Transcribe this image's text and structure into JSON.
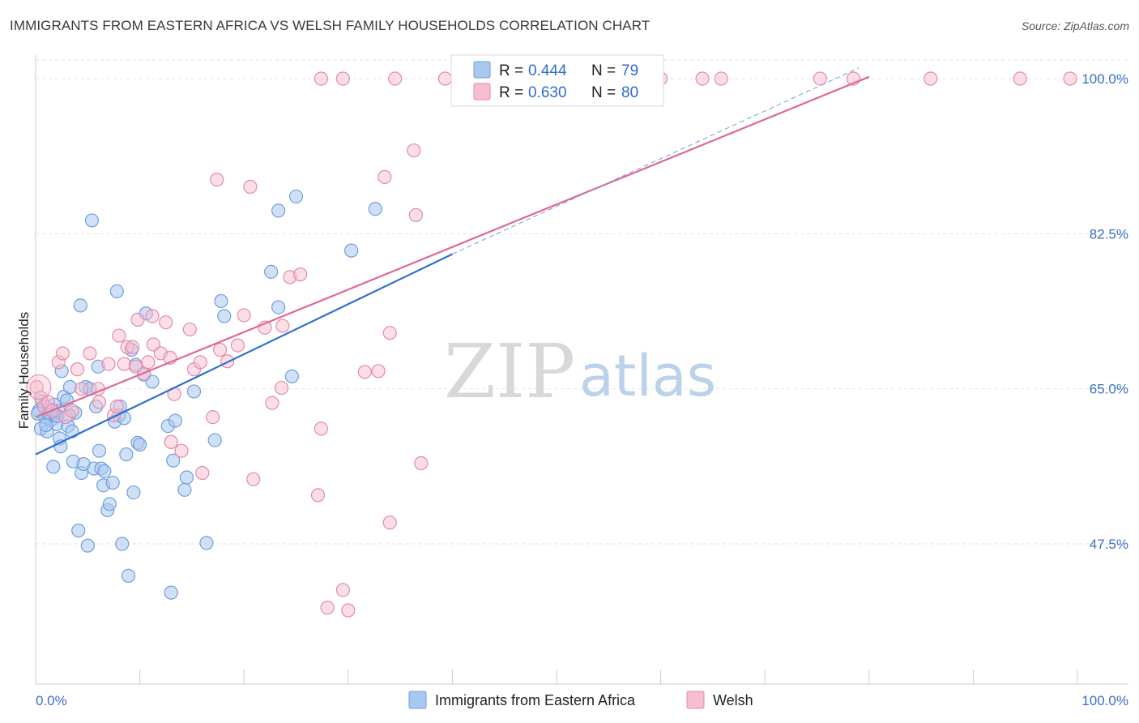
{
  "title": "IMMIGRANTS FROM EASTERN AFRICA VS WELSH FAMILY HOUSEHOLDS CORRELATION CHART",
  "source": "Source: ZipAtlas.com",
  "watermark": {
    "zip": "ZIP",
    "atlas": "atlas"
  },
  "legend": {
    "r_label": "R =",
    "n_label": "N =",
    "rows": [
      {
        "r": "0.444",
        "n": "79",
        "color": "#a9c8f0",
        "stroke": "#6f9fdc"
      },
      {
        "r": "0.630",
        "n": "80",
        "color": "#f7bdd0",
        "stroke": "#e58aa8"
      }
    ]
  },
  "bottom_legend": [
    "Immigrants from Eastern Africa",
    "Welsh"
  ],
  "chart_data": {
    "type": "scatter",
    "title": "IMMIGRANTS FROM EASTERN AFRICA VS WELSH FAMILY HOUSEHOLDS CORRELATION CHART",
    "xlabel": "",
    "ylabel": "Family Households",
    "xlim": [
      0,
      100
    ],
    "ylim": [
      30,
      101.5
    ],
    "x_tick_labels": [
      "0.0%",
      "100.0%"
    ],
    "y_ticks": [
      47.5,
      65.0,
      82.5,
      100.0
    ],
    "y_tick_labels": [
      "47.5%",
      "65.0%",
      "82.5%",
      "100.0%"
    ],
    "grid": true,
    "series": [
      {
        "name": "Immigrants from Eastern Africa",
        "color": "#6f9fdc",
        "fill": "#a9c8f0",
        "trend": {
          "x": [
            0,
            40
          ],
          "y": [
            57.6,
            80.2
          ]
        },
        "trend_extension": {
          "x": [
            40,
            79
          ],
          "y": [
            80.2,
            101.2
          ]
        },
        "points": [
          [
            0.3,
            62.5
          ],
          [
            0.5,
            60.5
          ],
          [
            0.6,
            63.6
          ],
          [
            0.9,
            61.8
          ],
          [
            1.1,
            60.2
          ],
          [
            1.3,
            62.1
          ],
          [
            1.5,
            61.5
          ],
          [
            1.7,
            56.2
          ],
          [
            1.8,
            63.2
          ],
          [
            1.9,
            62.0
          ],
          [
            2.0,
            61.0
          ],
          [
            2.2,
            62.5
          ],
          [
            2.3,
            59.4
          ],
          [
            2.4,
            58.5
          ],
          [
            2.5,
            67.0
          ],
          [
            2.7,
            64.1
          ],
          [
            3.0,
            63.7
          ],
          [
            3.1,
            60.8
          ],
          [
            3.3,
            65.2
          ],
          [
            3.5,
            60.2
          ],
          [
            3.6,
            56.8
          ],
          [
            3.8,
            62.3
          ],
          [
            4.1,
            49.0
          ],
          [
            4.3,
            74.4
          ],
          [
            4.4,
            55.5
          ],
          [
            4.6,
            56.5
          ],
          [
            4.8,
            65.2
          ],
          [
            5.0,
            47.3
          ],
          [
            5.2,
            65.0
          ],
          [
            5.4,
            84.0
          ],
          [
            5.6,
            56.0
          ],
          [
            5.8,
            63.0
          ],
          [
            6.0,
            67.5
          ],
          [
            6.1,
            58.0
          ],
          [
            6.3,
            56.0
          ],
          [
            6.5,
            54.1
          ],
          [
            6.6,
            55.7
          ],
          [
            6.9,
            51.3
          ],
          [
            7.1,
            52.0
          ],
          [
            7.4,
            54.4
          ],
          [
            7.6,
            61.3
          ],
          [
            7.8,
            76.0
          ],
          [
            8.0,
            62.0
          ],
          [
            8.1,
            63.0
          ],
          [
            8.3,
            47.5
          ],
          [
            8.5,
            61.7
          ],
          [
            8.7,
            57.6
          ],
          [
            8.9,
            43.9
          ],
          [
            9.2,
            69.4
          ],
          [
            9.4,
            53.3
          ],
          [
            9.6,
            67.7
          ],
          [
            9.8,
            58.9
          ],
          [
            10.0,
            58.7
          ],
          [
            10.4,
            66.6
          ],
          [
            10.6,
            73.5
          ],
          [
            11.2,
            65.8
          ],
          [
            12.7,
            60.8
          ],
          [
            13.0,
            42.0
          ],
          [
            13.2,
            56.9
          ],
          [
            13.4,
            61.4
          ],
          [
            14.3,
            53.6
          ],
          [
            14.5,
            55.0
          ],
          [
            15.2,
            64.7
          ],
          [
            16.4,
            47.6
          ],
          [
            17.2,
            59.2
          ],
          [
            17.8,
            74.9
          ],
          [
            18.1,
            73.2
          ],
          [
            22.6,
            78.2
          ],
          [
            23.3,
            74.2
          ],
          [
            23.3,
            85.1
          ],
          [
            24.6,
            66.4
          ],
          [
            25.0,
            86.7
          ],
          [
            30.3,
            80.6
          ],
          [
            32.6,
            85.3
          ],
          [
            0.2,
            62.2
          ],
          [
            1.0,
            60.9
          ],
          [
            1.4,
            62.7
          ],
          [
            2.1,
            61.9
          ],
          [
            3.2,
            62.0
          ]
        ]
      },
      {
        "name": "Welsh",
        "color": "#e58aa8",
        "fill": "#f7bdd0",
        "trend": {
          "x": [
            0,
            80
          ],
          "y": [
            61.8,
            100.2
          ]
        },
        "points": [
          [
            0.1,
            65.2
          ],
          [
            0.5,
            64.0
          ],
          [
            0.8,
            63.0
          ],
          [
            1.2,
            63.5
          ],
          [
            1.6,
            62.5
          ],
          [
            2.2,
            68.0
          ],
          [
            2.6,
            69.0
          ],
          [
            2.9,
            61.8
          ],
          [
            3.5,
            62.5
          ],
          [
            4.0,
            67.2
          ],
          [
            4.4,
            65.0
          ],
          [
            5.2,
            69.0
          ],
          [
            6.0,
            65.0
          ],
          [
            6.1,
            63.5
          ],
          [
            7.0,
            67.8
          ],
          [
            7.5,
            62.0
          ],
          [
            7.8,
            63.0
          ],
          [
            8.0,
            71.0
          ],
          [
            8.5,
            67.8
          ],
          [
            8.8,
            69.7
          ],
          [
            9.3,
            69.7
          ],
          [
            9.6,
            67.5
          ],
          [
            9.8,
            72.8
          ],
          [
            10.4,
            66.7
          ],
          [
            10.8,
            68.0
          ],
          [
            11.2,
            73.2
          ],
          [
            11.3,
            70.0
          ],
          [
            12.0,
            69.0
          ],
          [
            12.5,
            72.5
          ],
          [
            12.9,
            68.5
          ],
          [
            13.0,
            59.0
          ],
          [
            13.3,
            64.4
          ],
          [
            14.0,
            58.0
          ],
          [
            14.8,
            71.7
          ],
          [
            15.2,
            67.2
          ],
          [
            15.8,
            68.0
          ],
          [
            16.0,
            55.5
          ],
          [
            17.0,
            61.8
          ],
          [
            17.4,
            88.6
          ],
          [
            17.7,
            69.4
          ],
          [
            18.4,
            68.1
          ],
          [
            19.4,
            69.9
          ],
          [
            20.0,
            73.3
          ],
          [
            20.6,
            87.8
          ],
          [
            20.9,
            54.8
          ],
          [
            22.0,
            71.9
          ],
          [
            22.7,
            63.4
          ],
          [
            23.6,
            65.1
          ],
          [
            23.7,
            72.1
          ],
          [
            24.4,
            77.6
          ],
          [
            25.4,
            77.9
          ],
          [
            27.1,
            53.0
          ],
          [
            27.4,
            60.5
          ],
          [
            28.0,
            40.3
          ],
          [
            29.5,
            42.3
          ],
          [
            30.0,
            40.0
          ],
          [
            31.6,
            66.9
          ],
          [
            32.9,
            67.0
          ],
          [
            33.5,
            88.9
          ],
          [
            34.0,
            71.3
          ],
          [
            34.0,
            49.9
          ],
          [
            36.3,
            91.9
          ],
          [
            36.5,
            84.6
          ],
          [
            37.0,
            56.6
          ],
          [
            27.4,
            100.0
          ],
          [
            29.5,
            100.0
          ],
          [
            34.5,
            100.0
          ],
          [
            39.3,
            100.0
          ],
          [
            44.9,
            100.0
          ],
          [
            47.0,
            100.0
          ],
          [
            48.4,
            100.0
          ],
          [
            50.3,
            100.0
          ],
          [
            60.0,
            100.0
          ],
          [
            64.0,
            100.0
          ],
          [
            65.8,
            100.0
          ],
          [
            75.3,
            100.0
          ],
          [
            78.5,
            100.0
          ],
          [
            94.5,
            100.0
          ],
          [
            99.3,
            100.0
          ],
          [
            85.9,
            100.0
          ]
        ]
      }
    ]
  }
}
